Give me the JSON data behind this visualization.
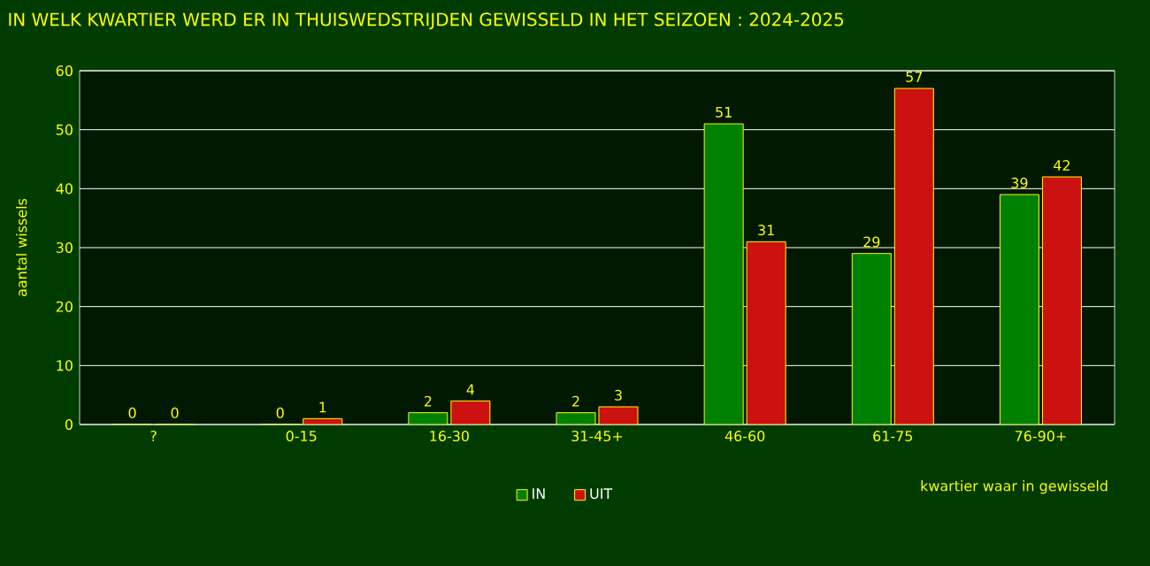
{
  "chart_data": {
    "type": "bar",
    "title": "IN WELK KWARTIER WERD ER IN THUISWEDSTRIJDEN GEWISSELD IN HET SEIZOEN : 2024-2025",
    "xlabel": "kwartier waar in gewisseld",
    "ylabel": "aantal wissels",
    "categories": [
      "?",
      "0-15",
      "16-30",
      "31-45+",
      "46-60",
      "61-75",
      "76-90+"
    ],
    "series": [
      {
        "name": "IN",
        "color": "#008000",
        "values": [
          0,
          0,
          2,
          2,
          51,
          29,
          39
        ]
      },
      {
        "name": "UIT",
        "color": "#cc1111",
        "values": [
          0,
          1,
          4,
          3,
          31,
          57,
          42
        ]
      }
    ],
    "ylim": [
      0,
      60
    ],
    "yticks": [
      0,
      10,
      20,
      30,
      40,
      50,
      60
    ],
    "grid": "y",
    "legend": "bottom",
    "data_labels": true
  }
}
